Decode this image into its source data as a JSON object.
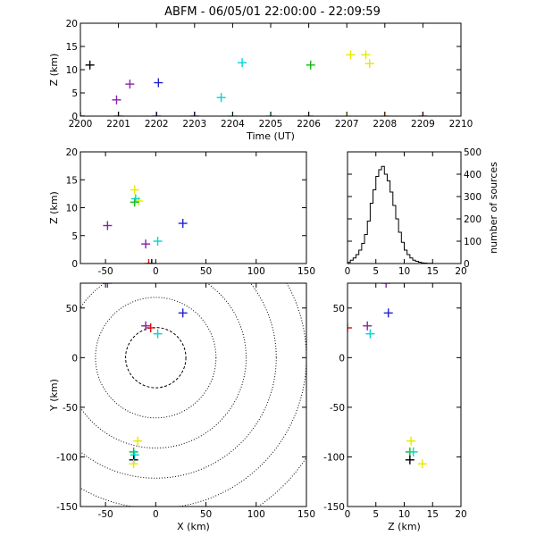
{
  "title": "ABFM - 06/05/01 22:00:00 - 22:09:59",
  "colors": {
    "frame": "#000000",
    "red": "#dd1111",
    "orange": "#ff8800",
    "green": "#11bb11",
    "cyan": "#00d4d4",
    "blue": "#2222cc",
    "purple": "#8822aa",
    "yellow": "#e8e800",
    "black": "#000000"
  },
  "chart_data": [
    {
      "id": "time_height",
      "type": "scatter",
      "xlabel": "Time (UT)",
      "ylabel": "Z (km)",
      "xlim": [
        2200,
        2210
      ],
      "ylim": [
        0,
        20
      ],
      "xticks": [
        "2200",
        "2201",
        "2202",
        "2203",
        "2204",
        "2205",
        "2206",
        "2207",
        "2208",
        "2209",
        "2210"
      ],
      "yticks": [
        "0",
        "5",
        "10",
        "15",
        "20"
      ],
      "points": [
        {
          "x": 2200.0,
          "y": 0.0,
          "color": "black"
        },
        {
          "x": 2200.25,
          "y": 11.0,
          "color": "black"
        },
        {
          "x": 2201.0,
          "y": 0.0,
          "color": "purple"
        },
        {
          "x": 2200.95,
          "y": 3.5,
          "color": "purple"
        },
        {
          "x": 2201.3,
          "y": 6.9,
          "color": "purple"
        },
        {
          "x": 2202.0,
          "y": 0.0,
          "color": "blue"
        },
        {
          "x": 2202.05,
          "y": 7.2,
          "color": "blue"
        },
        {
          "x": 2203.0,
          "y": 0.0,
          "color": "blue"
        },
        {
          "x": 2203.7,
          "y": 4.0,
          "color": "cyan"
        },
        {
          "x": 2204.0,
          "y": 0.0,
          "color": "cyan"
        },
        {
          "x": 2204.25,
          "y": 11.5,
          "color": "cyan"
        },
        {
          "x": 2205.0,
          "y": 0.0,
          "color": "cyan"
        },
        {
          "x": 2206.0,
          "y": 0.0,
          "color": "green"
        },
        {
          "x": 2206.05,
          "y": 11.0,
          "color": "green"
        },
        {
          "x": 2207.0,
          "y": 0.0,
          "color": "yellow"
        },
        {
          "x": 2207.1,
          "y": 13.2,
          "color": "yellow"
        },
        {
          "x": 2207.5,
          "y": 13.2,
          "color": "yellow"
        },
        {
          "x": 2207.6,
          "y": 11.3,
          "color": "yellow"
        },
        {
          "x": 2208.0,
          "y": 0.0,
          "color": "orange"
        },
        {
          "x": 2209.0,
          "y": 0.0,
          "color": "red"
        }
      ]
    },
    {
      "id": "x_z",
      "type": "scatter",
      "xlabel": "",
      "ylabel": "Z (km)",
      "xlim": [
        -75,
        150
      ],
      "ylim": [
        0,
        20
      ],
      "xticks": [
        "-50",
        "0",
        "50",
        "100",
        "150"
      ],
      "yticks": [
        "0",
        "5",
        "10",
        "15",
        "20"
      ],
      "points": [
        {
          "x": -48,
          "y": 6.8,
          "color": "purple"
        },
        {
          "x": -10,
          "y": 3.5,
          "color": "purple"
        },
        {
          "x": -21,
          "y": 13.2,
          "color": "yellow"
        },
        {
          "x": -17,
          "y": 11.2,
          "color": "yellow"
        },
        {
          "x": -21,
          "y": 11.0,
          "color": "green"
        },
        {
          "x": -20,
          "y": 11.6,
          "color": "cyan"
        },
        {
          "x": 2,
          "y": 4.0,
          "color": "cyan"
        },
        {
          "x": 27,
          "y": 7.2,
          "color": "blue"
        },
        {
          "x": -7,
          "y": 0.0,
          "color": "red"
        },
        {
          "x": -4,
          "y": 0.0,
          "color": "black"
        }
      ]
    },
    {
      "id": "height_histogram",
      "type": "histogram",
      "xlabel": "",
      "ylabel": "number of sources",
      "xlim": [
        0,
        20
      ],
      "ylim": [
        0,
        500
      ],
      "xticks": [
        "0",
        "5",
        "10",
        "15",
        "20"
      ],
      "yticks": [
        "0",
        "100",
        "200",
        "300",
        "400",
        "500"
      ],
      "bin_width": 0.5,
      "bins_start": 0,
      "counts": [
        5,
        15,
        25,
        40,
        60,
        90,
        130,
        190,
        270,
        330,
        390,
        420,
        435,
        400,
        370,
        320,
        260,
        200,
        140,
        95,
        60,
        40,
        25,
        15,
        10,
        6,
        3,
        2,
        1,
        1,
        0,
        0,
        0,
        0,
        0,
        0,
        0,
        0,
        0,
        0
      ]
    },
    {
      "id": "x_y_plan",
      "type": "scatter",
      "xlabel": "X (km)",
      "ylabel": "Y (km)",
      "xlim": [
        -75,
        150
      ],
      "ylim": [
        -150,
        75
      ],
      "xticks": [
        "-50",
        "0",
        "50",
        "100",
        "150"
      ],
      "yticks": [
        "-150",
        "-100",
        "-50",
        "0",
        "50"
      ],
      "range_rings_km": [
        30,
        60,
        90,
        120,
        150,
        180
      ],
      "points": [
        {
          "x": -48,
          "y": 75,
          "color": "purple"
        },
        {
          "x": -10,
          "y": 32,
          "color": "purple"
        },
        {
          "x": -5,
          "y": 30,
          "color": "red"
        },
        {
          "x": 2,
          "y": 24,
          "color": "cyan"
        },
        {
          "x": 27,
          "y": 45,
          "color": "blue"
        },
        {
          "x": -18,
          "y": -84,
          "color": "yellow"
        },
        {
          "x": -22,
          "y": -95,
          "color": "green"
        },
        {
          "x": -21,
          "y": -98,
          "color": "cyan"
        },
        {
          "x": -22,
          "y": -103,
          "color": "black"
        },
        {
          "x": -22,
          "y": -107,
          "color": "yellow"
        }
      ]
    },
    {
      "id": "z_y",
      "type": "scatter",
      "xlabel": "Z (km)",
      "ylabel": "",
      "xlim": [
        0,
        20
      ],
      "ylim": [
        -150,
        75
      ],
      "xticks": [
        "0",
        "5",
        "10",
        "15",
        "20"
      ],
      "yticks": [
        "-150",
        "-100",
        "-50",
        "0",
        "50"
      ],
      "points": [
        {
          "x": 6.8,
          "y": 75,
          "color": "purple"
        },
        {
          "x": 3.5,
          "y": 32,
          "color": "purple"
        },
        {
          "x": 0.0,
          "y": 30,
          "color": "red"
        },
        {
          "x": 4.0,
          "y": 24,
          "color": "cyan"
        },
        {
          "x": 7.2,
          "y": 45,
          "color": "blue"
        },
        {
          "x": 11.2,
          "y": -84,
          "color": "yellow"
        },
        {
          "x": 11.0,
          "y": -95,
          "color": "green"
        },
        {
          "x": 11.6,
          "y": -95,
          "color": "cyan"
        },
        {
          "x": 11.0,
          "y": -103,
          "color": "black"
        },
        {
          "x": 13.2,
          "y": -107,
          "color": "yellow"
        }
      ]
    }
  ]
}
